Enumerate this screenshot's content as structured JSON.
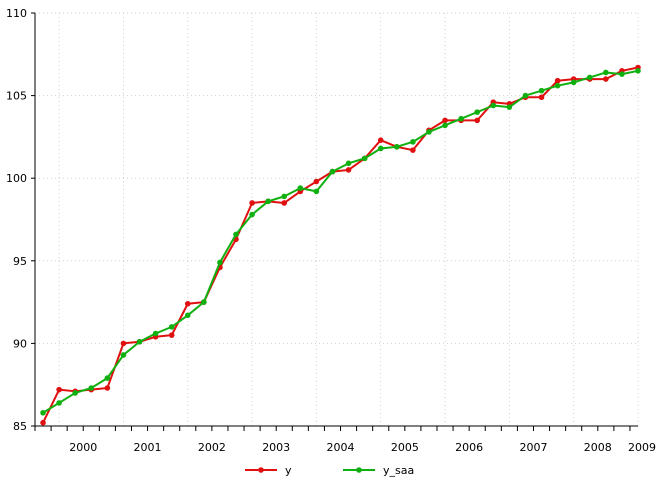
{
  "chart_data": {
    "type": "line",
    "title": "",
    "xlabel": "",
    "ylabel": "",
    "xlim": [
      1999.625,
      2009.0
    ],
    "ylim": [
      85,
      110
    ],
    "y_ticks": [
      "85",
      "90",
      "95",
      "100",
      "105",
      "110"
    ],
    "x_tick_labels": [
      "2000",
      "2001",
      "2002",
      "2003",
      "2004",
      "2005",
      "2006",
      "2007",
      "2008",
      "2009"
    ],
    "grid": true,
    "legend_position": "bottom",
    "series": [
      {
        "name": "y",
        "color": "#e01010",
        "values": [
          85.2,
          87.2,
          87.1,
          87.2,
          87.3,
          90.0,
          90.1,
          90.4,
          90.5,
          92.4,
          92.5,
          94.6,
          96.3,
          98.5,
          98.6,
          98.5,
          99.2,
          99.8,
          100.4,
          100.5,
          101.2,
          102.3,
          101.9,
          101.7,
          102.9,
          103.5,
          103.5,
          103.5,
          104.6,
          104.5,
          104.9,
          104.9,
          105.9,
          106.0,
          106.0,
          106.0,
          106.5,
          106.7
        ]
      },
      {
        "name": "y_saa",
        "color": "#10b010",
        "values": [
          85.8,
          86.4,
          87.0,
          87.3,
          87.9,
          89.3,
          90.1,
          90.6,
          91.0,
          91.7,
          92.5,
          94.9,
          96.6,
          97.8,
          98.6,
          98.9,
          99.4,
          99.2,
          100.4,
          100.9,
          101.2,
          101.8,
          101.9,
          102.2,
          102.8,
          103.2,
          103.6,
          104.0,
          104.4,
          104.3,
          105.0,
          105.3,
          105.6,
          105.8,
          106.1,
          106.4,
          106.3,
          106.5
        ]
      }
    ]
  }
}
